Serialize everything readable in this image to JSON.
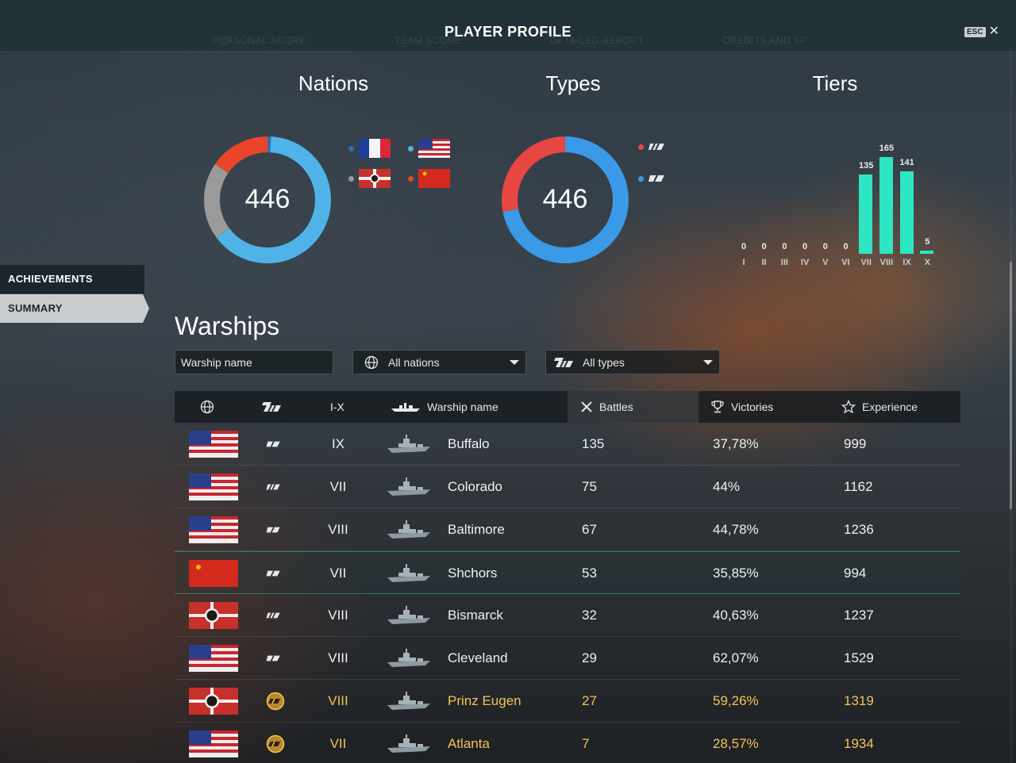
{
  "header": {
    "title": "PLAYER PROFILE",
    "esc_key": "ESC",
    "ghost_tabs": [
      "PERSONAL SCORE",
      "TEAM SCORE",
      "DETAILED REPORT",
      "CREDITS AND XP"
    ]
  },
  "sidebar": {
    "items": [
      {
        "label": "ACHIEVEMENTS",
        "active": false
      },
      {
        "label": "SUMMARY",
        "active": true
      }
    ]
  },
  "nations": {
    "title": "Nations",
    "total": "446",
    "legend": [
      {
        "icon": "france-flag-icon",
        "color": "#2f6fb0"
      },
      {
        "icon": "usa-flag-icon",
        "color": "#4fb3e8"
      },
      {
        "icon": "germany-flag-icon",
        "color": "#9a9a9a"
      },
      {
        "icon": "ussr-flag-icon",
        "color": "#e8452a"
      }
    ]
  },
  "types": {
    "title": "Types",
    "total": "446",
    "legend": [
      {
        "icon": "battleship-icon",
        "color": "#e84545"
      },
      {
        "icon": "cruiser-icon",
        "color": "#3a9ae8"
      }
    ]
  },
  "tiers": {
    "title": "Tiers"
  },
  "chart_data": [
    {
      "type": "pie",
      "title": "Nations",
      "slices": [
        {
          "label": "France",
          "value": 4,
          "color": "#2f6fb0"
        },
        {
          "label": "USA",
          "value": 285,
          "color": "#4fb3e8"
        },
        {
          "label": "Germany",
          "value": 88,
          "color": "#9a9a9a"
        },
        {
          "label": "USSR",
          "value": 69,
          "color": "#e8452a"
        }
      ]
    },
    {
      "type": "pie",
      "title": "Types",
      "slices": [
        {
          "label": "Cruiser",
          "value": 321,
          "color": "#3a9ae8"
        },
        {
          "label": "Battleship",
          "value": 125,
          "color": "#e84545"
        }
      ]
    },
    {
      "type": "bar",
      "title": "Tiers",
      "categories": [
        "I",
        "II",
        "III",
        "IV",
        "V",
        "VI",
        "VII",
        "VIII",
        "IX",
        "X"
      ],
      "values": [
        0,
        0,
        0,
        0,
        0,
        0,
        135,
        165,
        141,
        5
      ]
    }
  ],
  "warships": {
    "title": "Warships",
    "search_placeholder": "Warship name",
    "nation_filter": "All nations",
    "type_filter": "All types",
    "columns": {
      "nation_icon": "globe-icon",
      "type_icon": "ship-type-icon",
      "tier": "I-X",
      "name": "Warship name",
      "battles": "Battles",
      "victories": "Victories",
      "experience": "Experience"
    },
    "rows": [
      {
        "nation": "usa",
        "type": "cruiser",
        "tier": "IX",
        "name": "Buffalo",
        "battles": "135",
        "victories": "37,78%",
        "experience": "999",
        "premium": false
      },
      {
        "nation": "usa",
        "type": "battleship",
        "tier": "VII",
        "name": "Colorado",
        "battles": "75",
        "victories": "44%",
        "experience": "1162",
        "premium": false
      },
      {
        "nation": "usa",
        "type": "cruiser",
        "tier": "VIII",
        "name": "Baltimore",
        "battles": "67",
        "victories": "44,78%",
        "experience": "1236",
        "premium": false
      },
      {
        "nation": "ussr",
        "type": "cruiser",
        "tier": "VII",
        "name": "Shchors",
        "battles": "53",
        "victories": "35,85%",
        "experience": "994",
        "premium": false
      },
      {
        "nation": "germany",
        "type": "battleship",
        "tier": "VIII",
        "name": "Bismarck",
        "battles": "32",
        "victories": "40,63%",
        "experience": "1237",
        "premium": false
      },
      {
        "nation": "usa",
        "type": "cruiser",
        "tier": "VIII",
        "name": "Cleveland",
        "battles": "29",
        "victories": "62,07%",
        "experience": "1529",
        "premium": false
      },
      {
        "nation": "germany",
        "type": "premium-cruiser",
        "tier": "VIII",
        "name": "Prinz Eugen",
        "battles": "27",
        "victories": "59,26%",
        "experience": "1319",
        "premium": true
      },
      {
        "nation": "usa",
        "type": "premium-cruiser",
        "tier": "VII",
        "name": "Atlanta",
        "battles": "7",
        "victories": "28,57%",
        "experience": "1934",
        "premium": true
      }
    ]
  }
}
